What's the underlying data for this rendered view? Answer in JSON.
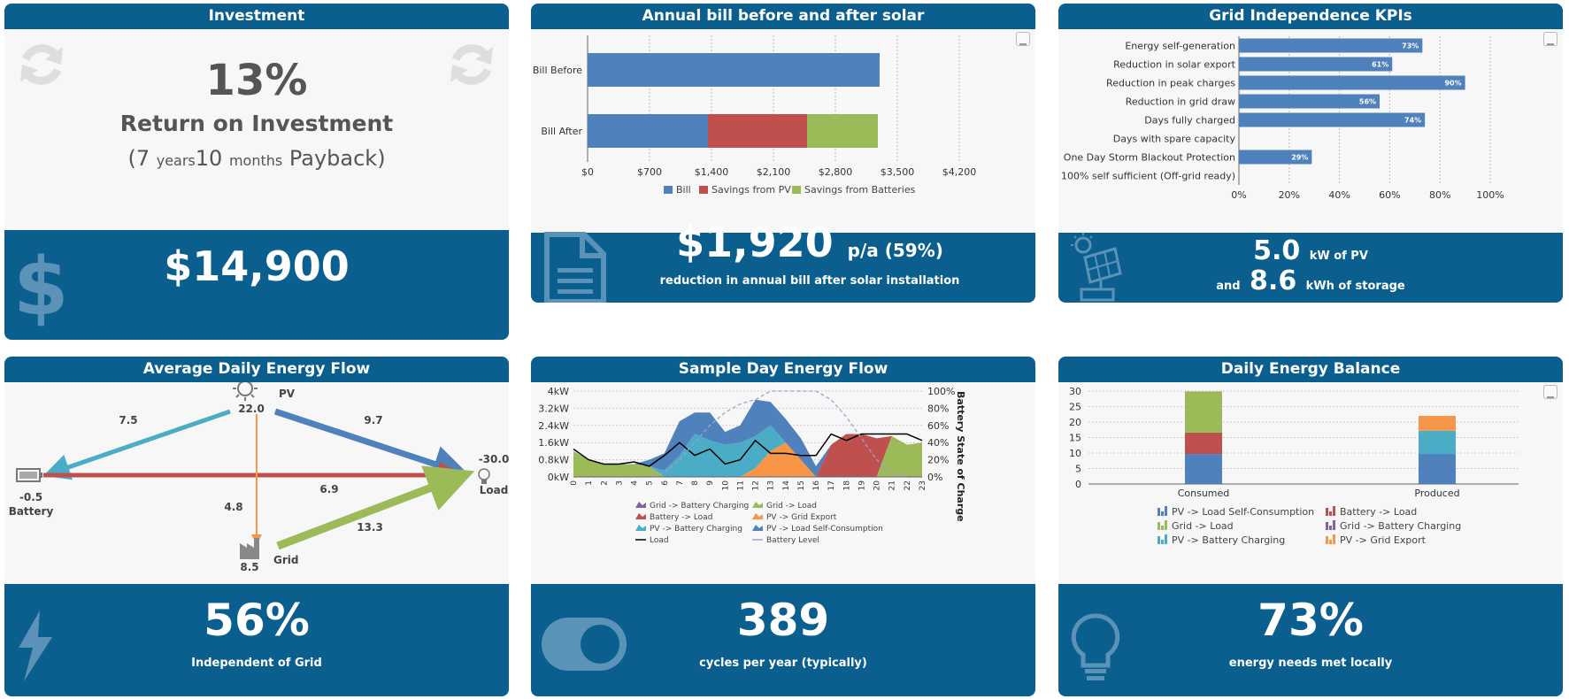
{
  "investment": {
    "title": "Investment",
    "roi_value": "13%",
    "roi_label": "Return on Investment",
    "payback": {
      "open": "(",
      "years": "7",
      "years_unit": "years",
      "months": "10",
      "months_unit": "months",
      "label": "Payback)"
    },
    "amount": "$14,900"
  },
  "annual_bill": {
    "title": "Annual bill before and after solar",
    "amount": "$1,920",
    "amount_suffix": "p/a (59%)",
    "caption": "reduction in annual bill after solar installation"
  },
  "grid_kpis": {
    "title": "Grid Independence KPIs",
    "pv": "5.0",
    "pv_unit": "kW of PV",
    "and_label": "and",
    "storage": "8.6",
    "storage_unit": "kWh of storage"
  },
  "energy_flow": {
    "title": "Average Daily Energy Flow",
    "pv_label": "PV",
    "pv_value": "22.0",
    "battery_label": "Battery",
    "battery_value": "-0.5",
    "load_label": "Load",
    "load_value": "-30.0",
    "grid_label": "Grid",
    "grid_value": "8.5",
    "pv_to_battery": "7.5",
    "pv_to_load": "9.7",
    "battery_to_load": "6.9",
    "pv_to_grid": "4.8",
    "grid_to_load": "13.3",
    "independent": "56%",
    "independent_label": "Independent of Grid"
  },
  "sample_day": {
    "title": "Sample Day Energy Flow",
    "cycles": "389",
    "cycles_label": "cycles per year (typically)"
  },
  "daily_balance": {
    "title": "Daily Energy Balance",
    "met": "73%",
    "met_label": "energy needs met locally"
  },
  "icons": [
    "refresh-icon",
    "dollar-icon",
    "document-icon",
    "solar-panel-icon",
    "bolt-icon",
    "toggle-icon",
    "lightbulb-icon",
    "download-icon",
    "sun-icon",
    "battery-icon",
    "factory-icon"
  ],
  "colors": {
    "header": "#0b5f8e",
    "blue": "#4f81bd",
    "red": "#c0504d",
    "green": "#9bbb59",
    "teal": "#4bacc6",
    "orange": "#f79646",
    "purple": "#8064a2"
  },
  "chart_data": [
    {
      "type": "bar",
      "orientation": "horizontal",
      "stacked": true,
      "categories": [
        "Bill Before",
        "Bill After"
      ],
      "series": [
        {
          "name": "Bill",
          "values": [
            3300,
            1360
          ]
        },
        {
          "name": "Savings from PV",
          "values": [
            0,
            1120
          ]
        },
        {
          "name": "Savings from Batteries",
          "values": [
            0,
            800
          ]
        }
      ],
      "xticks": [
        "$0",
        "$700",
        "$1,400",
        "$2,100",
        "$2,800",
        "$3,500",
        "$4,200"
      ],
      "xlim": [
        0,
        4200
      ],
      "legend": "bottom",
      "grid": true
    },
    {
      "type": "bar",
      "orientation": "horizontal",
      "categories": [
        "Energy self-generation",
        "Reduction in solar export",
        "Reduction in peak charges",
        "Reduction in grid draw",
        "Days fully charged",
        "Days with spare capacity",
        "One Day Storm Blackout Protection",
        "Days 100% self sufficient (Off-grid ready)"
      ],
      "values": [
        73,
        61,
        90,
        56,
        74,
        0,
        29,
        0
      ],
      "data_labels": [
        "73%",
        "61%",
        "90%",
        "56%",
        "74%",
        "",
        "29%",
        ""
      ],
      "xticks": [
        "0%",
        "20%",
        "40%",
        "60%",
        "80%",
        "100%"
      ],
      "xlim": [
        0,
        100
      ],
      "grid": true
    },
    {
      "type": "area",
      "stacked": true,
      "x": [
        0,
        1,
        2,
        3,
        4,
        5,
        6,
        7,
        8,
        9,
        10,
        11,
        12,
        13,
        14,
        15,
        16,
        17,
        18,
        19,
        20,
        21,
        22,
        23
      ],
      "series": [
        {
          "name": "Grid -> Battery Charging",
          "values": [
            0,
            0,
            0,
            0,
            0,
            0,
            0,
            0,
            0,
            0,
            0,
            0,
            0,
            0,
            0,
            0,
            0,
            0,
            0,
            0,
            0,
            0,
            0,
            0
          ]
        },
        {
          "name": "Grid -> Load",
          "values": [
            1.2,
            0.8,
            0.6,
            0.6,
            0.6,
            0.5,
            0,
            0,
            0,
            0,
            0,
            0,
            0,
            0,
            0,
            0,
            0,
            0,
            0,
            0,
            0,
            1.9,
            1.5,
            1.6
          ]
        },
        {
          "name": "Battery -> Load",
          "values": [
            0,
            0,
            0,
            0,
            0,
            0,
            0,
            0,
            0,
            0,
            0,
            0,
            0,
            0,
            0,
            0,
            0,
            1.5,
            2.0,
            2.0,
            1.8,
            0,
            0,
            0
          ]
        },
        {
          "name": "PV -> Grid Export",
          "values": [
            0,
            0,
            0,
            0,
            0,
            0,
            0,
            0,
            0,
            0,
            0,
            0,
            0.4,
            1.2,
            1.6,
            0.8,
            0,
            0,
            0,
            0,
            0,
            0,
            0,
            0
          ]
        },
        {
          "name": "PV -> Battery Charging",
          "values": [
            0,
            0,
            0,
            0,
            0,
            0,
            0.3,
            1.0,
            2.0,
            1.7,
            1.5,
            1.6,
            1.5,
            1.2,
            0,
            0,
            0,
            0,
            0,
            0,
            0,
            0,
            0,
            0
          ]
        },
        {
          "name": "PV -> Load Self-Consumption",
          "values": [
            0,
            0,
            0,
            0,
            0,
            0.3,
            0.8,
            1.6,
            1.0,
            1.3,
            0.6,
            0.8,
            1.7,
            1.1,
            1.1,
            1.0,
            0.5,
            0,
            0,
            0,
            0,
            0,
            0,
            0
          ]
        }
      ],
      "lines": [
        {
          "name": "Load",
          "values": [
            1.3,
            0.8,
            0.6,
            0.6,
            0.7,
            0.5,
            1.0,
            1.6,
            1.0,
            1.3,
            0.6,
            0.8,
            1.7,
            1.1,
            1.1,
            1.0,
            1.0,
            2.0,
            1.7,
            2.0,
            2.0,
            2.0,
            2.0,
            1.7
          ]
        },
        {
          "name": "Battery Level",
          "axis": "right",
          "values": [
            0,
            0,
            0,
            0,
            0,
            0,
            5,
            20,
            40,
            60,
            75,
            85,
            90,
            100,
            100,
            100,
            100,
            90,
            70,
            45,
            20,
            5,
            0,
            0
          ]
        }
      ],
      "yticks_left": [
        "0kW",
        "0.8kW",
        "1.6kW",
        "2.4kW",
        "3.2kW",
        "4kW"
      ],
      "ylim_left": [
        0,
        4
      ],
      "yticks_right": [
        "0%",
        "20%",
        "40%",
        "60%",
        "80%",
        "100%"
      ],
      "ylim_right": [
        0,
        100
      ],
      "ylabel_right": "Battery State of Charge",
      "legend": "bottom"
    },
    {
      "type": "bar",
      "stacked": true,
      "categories": [
        "Consumed",
        "Produced"
      ],
      "series": [
        {
          "name": "PV -> Load Self-Consumption",
          "values": [
            9.7,
            9.7
          ]
        },
        {
          "name": "Battery -> Load",
          "values": [
            6.9,
            0
          ]
        },
        {
          "name": "Grid -> Load",
          "values": [
            13.3,
            0
          ]
        },
        {
          "name": "Grid -> Battery Charging",
          "values": [
            0,
            0
          ]
        },
        {
          "name": "PV -> Battery Charging",
          "values": [
            0,
            7.5
          ]
        },
        {
          "name": "PV -> Grid Export",
          "values": [
            0,
            4.8
          ]
        }
      ],
      "yticks": [
        "0",
        "5",
        "10",
        "15",
        "20",
        "25",
        "30"
      ],
      "ylim": [
        0,
        30
      ],
      "legend": "bottom"
    }
  ]
}
